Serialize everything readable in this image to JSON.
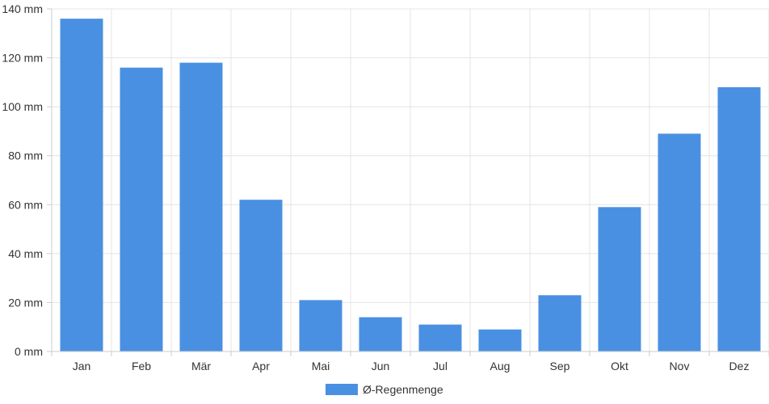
{
  "chart_data": {
    "type": "bar",
    "categories": [
      "Jan",
      "Feb",
      "Mär",
      "Apr",
      "Mai",
      "Jun",
      "Jul",
      "Aug",
      "Sep",
      "Okt",
      "Nov",
      "Dez"
    ],
    "series": [
      {
        "name": "Ø-Regenmenge",
        "color": "#4a90e2",
        "values": [
          136,
          116,
          118,
          62,
          21,
          14,
          11,
          9,
          23,
          59,
          89,
          108
        ]
      }
    ],
    "ylim": [
      0,
      140
    ],
    "yticks": [
      0,
      20,
      40,
      60,
      80,
      100,
      120,
      140
    ],
    "y_unit_suffix": " mm",
    "grid": true,
    "legend_position": "bottom-center"
  }
}
